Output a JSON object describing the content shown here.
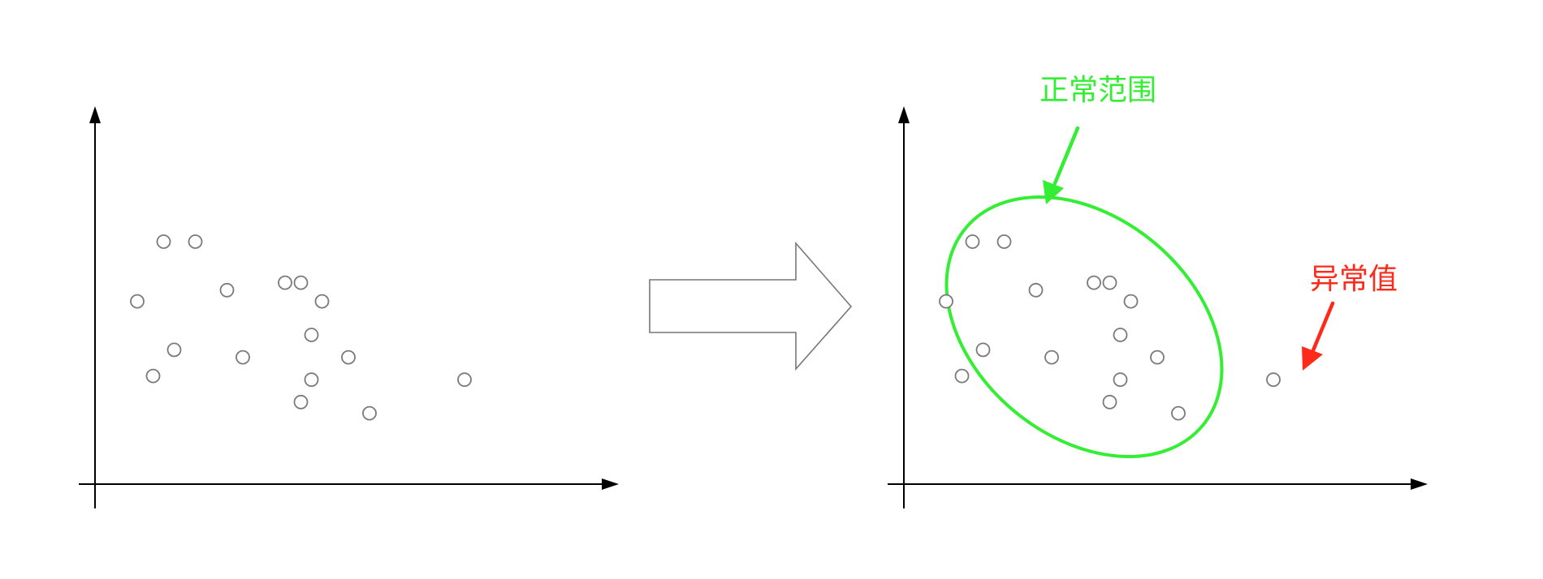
{
  "colors": {
    "normal": "#33ee33",
    "anomaly": "#ff2a1a",
    "axis": "#000000",
    "point_stroke": "#7a7a7a",
    "arrow_stroke": "#777777"
  },
  "icons": {
    "transform_arrow": "right-block-arrow-icon"
  },
  "chart_data": [
    {
      "type": "scatter",
      "title": "",
      "xlabel": "",
      "ylabel": "",
      "xlim": [
        0,
        10
      ],
      "ylim": [
        0,
        10
      ],
      "grid": false,
      "series": [
        {
          "name": "points",
          "x": [
            1.3,
            1.9,
            3.6,
            0.8,
            2.5,
            3.9,
            4.3,
            4.1,
            1.5,
            2.8,
            4.8,
            1.1,
            4.1,
            3.9,
            5.2,
            7.0
          ],
          "y": [
            6.5,
            6.5,
            5.4,
            4.9,
            5.2,
            5.4,
            4.9,
            4.0,
            3.6,
            3.4,
            3.4,
            2.9,
            2.8,
            2.2,
            1.9,
            2.8
          ]
        }
      ],
      "annotations": []
    },
    {
      "type": "scatter",
      "title": "",
      "xlabel": "",
      "ylabel": "",
      "xlim": [
        0,
        10
      ],
      "ylim": [
        0,
        10
      ],
      "grid": false,
      "series": [
        {
          "name": "normal",
          "x": [
            1.3,
            1.9,
            3.6,
            0.8,
            2.5,
            3.9,
            4.3,
            4.1,
            1.5,
            2.8,
            4.8,
            1.1,
            4.1,
            3.9,
            5.2
          ],
          "y": [
            6.5,
            6.5,
            5.4,
            4.9,
            5.2,
            5.4,
            4.9,
            4.0,
            3.6,
            3.4,
            3.4,
            2.9,
            2.8,
            2.2,
            1.9
          ]
        },
        {
          "name": "anomaly",
          "x": [
            7.0
          ],
          "y": [
            2.8
          ]
        }
      ],
      "annotations": [
        {
          "text": "正常范围",
          "color": "#33ee33",
          "target": "ellipse"
        },
        {
          "text": "异常值",
          "color": "#ff2a1a",
          "target": "point"
        }
      ]
    }
  ]
}
